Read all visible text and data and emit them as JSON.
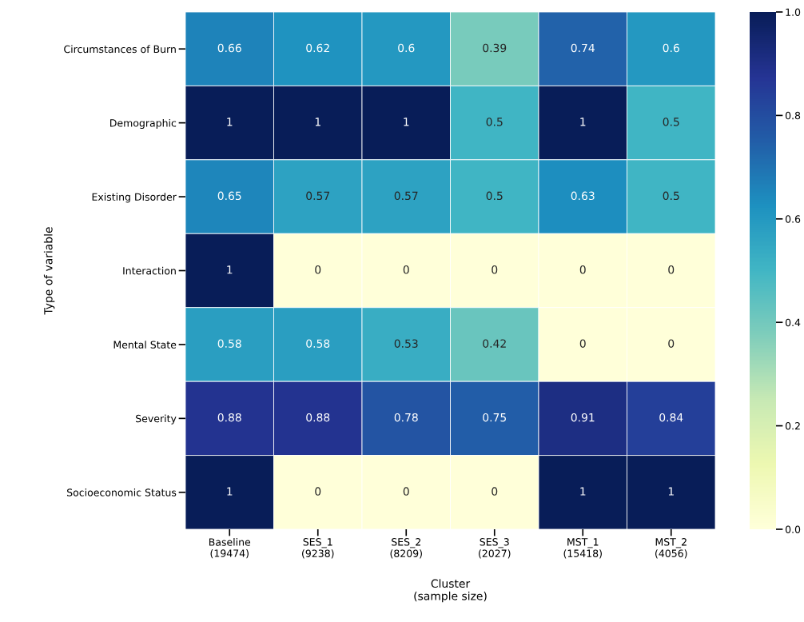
{
  "chart_data": {
    "type": "heatmap",
    "xlabel": "Cluster\n(sample size)",
    "ylabel": "Type of variable",
    "categories": [
      "Baseline\n(19474)",
      "SES_1\n(9238)",
      "SES_2\n(8209)",
      "SES_3\n(2027)",
      "MST_1\n(15418)",
      "MST_2\n(4056)"
    ],
    "y_categories": [
      "Circumstances of Burn",
      "Demographic",
      "Existing Disorder",
      "Interaction",
      "Mental State",
      "Severity",
      "Socioeconomic Status"
    ],
    "cells": [
      [
        0.66,
        0.62,
        0.6,
        0.39,
        0.74,
        0.6
      ],
      [
        1,
        1,
        1,
        0.5,
        1,
        0.5
      ],
      [
        0.65,
        0.57,
        0.57,
        0.5,
        0.63,
        0.5
      ],
      [
        1,
        0,
        0,
        0,
        0,
        0
      ],
      [
        0.58,
        0.58,
        0.53,
        0.42,
        0,
        0
      ],
      [
        0.88,
        0.88,
        0.78,
        0.75,
        0.91,
        0.84
      ],
      [
        1,
        0,
        0,
        0,
        1,
        1
      ]
    ],
    "clim": [
      0,
      1
    ],
    "cticks": [
      {
        "value": 0,
        "label": "0.0"
      },
      {
        "value": 0.2,
        "label": "0.2"
      },
      {
        "value": 0.4,
        "label": "0.4"
      },
      {
        "value": 0.6,
        "label": "0.6"
      },
      {
        "value": 0.8,
        "label": "0.8"
      },
      {
        "value": 1,
        "label": "1.0"
      }
    ],
    "data_labels": true
  }
}
